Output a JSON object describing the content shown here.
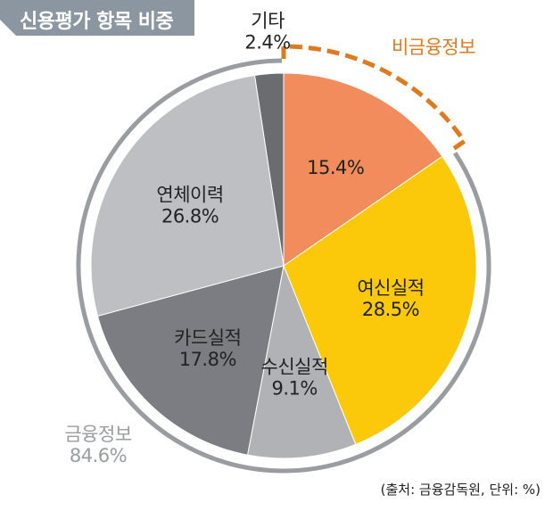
{
  "title": "신용평가 항목 비중",
  "source": "(출처: 금융감독원, 단위: %)",
  "chart_data": {
    "type": "pie",
    "unit": "%",
    "slices": [
      {
        "label": "",
        "value": 15.4,
        "value_text": "15.4%",
        "color": "#f28c5c",
        "group": "non_financial"
      },
      {
        "label": "여신실적",
        "value": 28.5,
        "value_text": "28.5%",
        "color": "#fcc80a",
        "group": "financial"
      },
      {
        "label": "수신실적",
        "value": 9.1,
        "value_text": "9.1%",
        "color": "#b0b2b6",
        "group": "financial"
      },
      {
        "label": "카드실적",
        "value": 17.8,
        "value_text": "17.8%",
        "color": "#7b7d82",
        "group": "financial"
      },
      {
        "label": "연체이력",
        "value": 26.8,
        "value_text": "26.8%",
        "color": "#bdbfc2",
        "group": "financial"
      },
      {
        "label": "기타",
        "value": 2.4,
        "value_text": "2.4%",
        "color": "#6a6c70",
        "group": "financial"
      }
    ],
    "groups": {
      "non_financial": {
        "label": "비금융정보",
        "color": "#e07a1f"
      },
      "financial": {
        "label": "금융정보",
        "value_text": "84.6%",
        "color": "#9a9ca0"
      }
    }
  }
}
